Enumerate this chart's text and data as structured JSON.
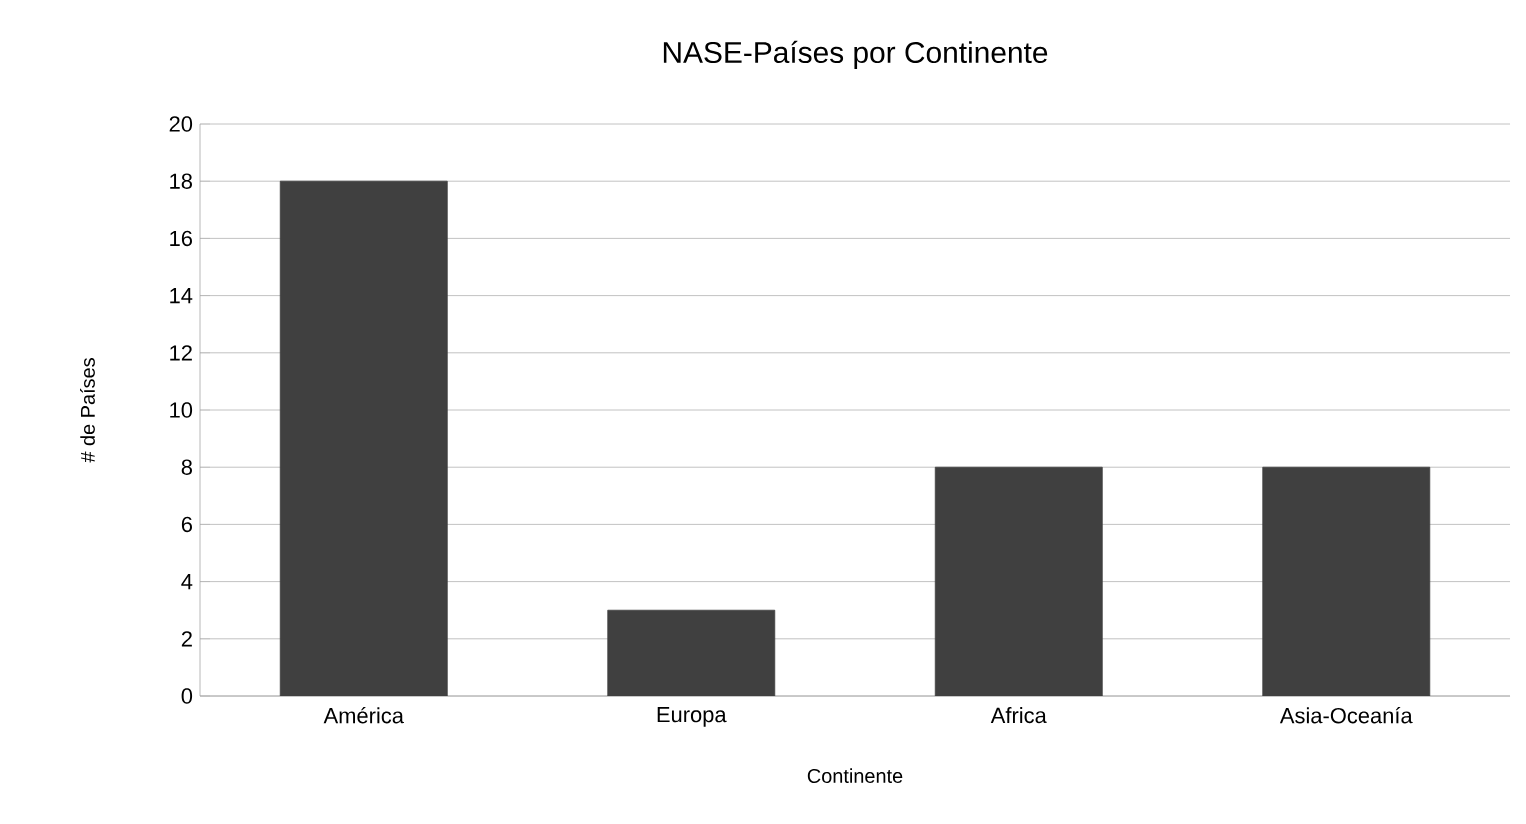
{
  "chart_data": {
    "type": "bar",
    "title": "NASE-Países por Continente",
    "xlabel": "Continente",
    "ylabel": "# de Países",
    "categories": [
      "América",
      "Europa",
      "Africa",
      "Asia-Oceanía"
    ],
    "values": [
      18,
      3,
      8,
      8
    ],
    "color": "#404040",
    "ylim": [
      0,
      20
    ],
    "yticks": [
      0,
      2,
      4,
      6,
      8,
      10,
      12,
      14,
      16,
      18,
      20
    ],
    "grid": "y"
  }
}
